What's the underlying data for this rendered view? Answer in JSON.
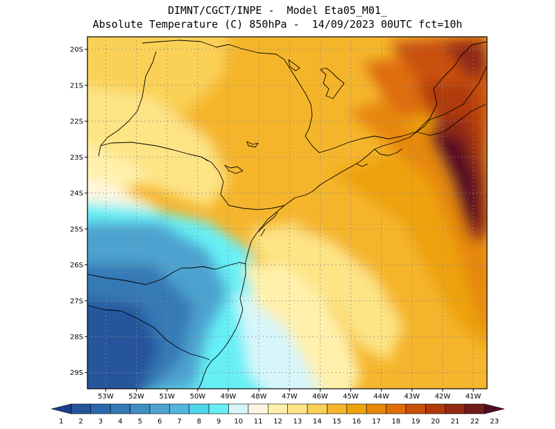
{
  "title": {
    "line1": "DIMNT/CGCT/INPE -  Model Eta05_M01_",
    "line2": "Absolute Temperature (C) 850hPa -  14/09/2023 00UTC fct=10h"
  },
  "map": {
    "lat_labels": [
      "20S",
      "21S",
      "22S",
      "23S",
      "24S",
      "25S",
      "26S",
      "27S",
      "28S",
      "29S"
    ],
    "lon_labels": [
      "53W",
      "52W",
      "51W",
      "50W",
      "49W",
      "48W",
      "47W",
      "46W",
      "45W",
      "44W",
      "43W",
      "42W",
      "41W"
    ],
    "lat_values": [
      -20,
      -21,
      -22,
      -23,
      -24,
      -25,
      -26,
      -27,
      -28,
      -29
    ],
    "lon_values": [
      -53,
      -52,
      -51,
      -50,
      -49,
      -48,
      -47,
      -46,
      -45,
      -44,
      -43,
      -42,
      -41
    ],
    "lat_range": [
      -29.45,
      -19.65
    ],
    "lon_range": [
      -53.6,
      -40.55
    ],
    "field": "temperature_850hPa",
    "units": "C"
  },
  "colorbar": {
    "labels": [
      "1",
      "2",
      "3",
      "4",
      "5",
      "6",
      "7",
      "8",
      "9",
      "10",
      "11",
      "12",
      "13",
      "14",
      "15",
      "16",
      "17",
      "18",
      "19",
      "20",
      "21",
      "22",
      "23"
    ],
    "colors": [
      "#1a3e8c",
      "#25549b",
      "#2a68ab",
      "#3579b5",
      "#3f8fc4",
      "#4ea3d0",
      "#55b6dd",
      "#4fd6e8",
      "#66f0f6",
      "#d7f6fa",
      "#fff7e2",
      "#fff1ac",
      "#fde485",
      "#fad156",
      "#f5b52c",
      "#eea20c",
      "#e68808",
      "#de6d08",
      "#c95008",
      "#b03a0a",
      "#922a12",
      "#701b1c",
      "#560b24"
    ]
  },
  "colors": {
    "background": "#ffffff",
    "coast": "#000000",
    "grid": "#8a8a8a"
  }
}
